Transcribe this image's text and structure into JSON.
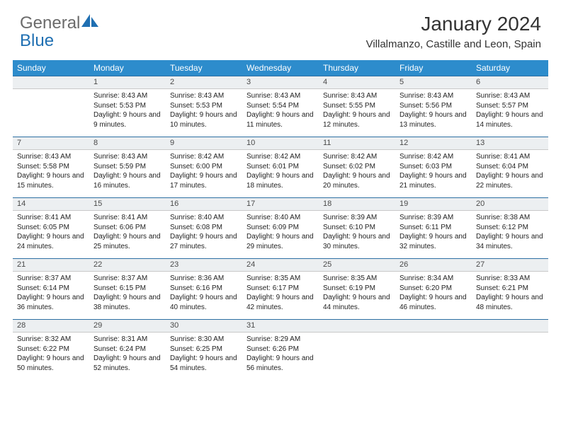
{
  "logo": {
    "line1": "General",
    "line2": "Blue"
  },
  "title": "January 2024",
  "location": "Villalmanzo, Castille and Leon, Spain",
  "colors": {
    "header_bg": "#2d8ccc",
    "header_text": "#ffffff",
    "daynum_bg": "#eceff1",
    "daynum_border_top": "#2d6fa3",
    "logo_gray": "#6b6b6b",
    "logo_blue": "#1f6fb2"
  },
  "weekdays": [
    "Sunday",
    "Monday",
    "Tuesday",
    "Wednesday",
    "Thursday",
    "Friday",
    "Saturday"
  ],
  "weeks": [
    [
      null,
      {
        "n": "1",
        "sr": "8:43 AM",
        "ss": "5:53 PM",
        "dl": "9 hours and 9 minutes."
      },
      {
        "n": "2",
        "sr": "8:43 AM",
        "ss": "5:53 PM",
        "dl": "9 hours and 10 minutes."
      },
      {
        "n": "3",
        "sr": "8:43 AM",
        "ss": "5:54 PM",
        "dl": "9 hours and 11 minutes."
      },
      {
        "n": "4",
        "sr": "8:43 AM",
        "ss": "5:55 PM",
        "dl": "9 hours and 12 minutes."
      },
      {
        "n": "5",
        "sr": "8:43 AM",
        "ss": "5:56 PM",
        "dl": "9 hours and 13 minutes."
      },
      {
        "n": "6",
        "sr": "8:43 AM",
        "ss": "5:57 PM",
        "dl": "9 hours and 14 minutes."
      }
    ],
    [
      {
        "n": "7",
        "sr": "8:43 AM",
        "ss": "5:58 PM",
        "dl": "9 hours and 15 minutes."
      },
      {
        "n": "8",
        "sr": "8:43 AM",
        "ss": "5:59 PM",
        "dl": "9 hours and 16 minutes."
      },
      {
        "n": "9",
        "sr": "8:42 AM",
        "ss": "6:00 PM",
        "dl": "9 hours and 17 minutes."
      },
      {
        "n": "10",
        "sr": "8:42 AM",
        "ss": "6:01 PM",
        "dl": "9 hours and 18 minutes."
      },
      {
        "n": "11",
        "sr": "8:42 AM",
        "ss": "6:02 PM",
        "dl": "9 hours and 20 minutes."
      },
      {
        "n": "12",
        "sr": "8:42 AM",
        "ss": "6:03 PM",
        "dl": "9 hours and 21 minutes."
      },
      {
        "n": "13",
        "sr": "8:41 AM",
        "ss": "6:04 PM",
        "dl": "9 hours and 22 minutes."
      }
    ],
    [
      {
        "n": "14",
        "sr": "8:41 AM",
        "ss": "6:05 PM",
        "dl": "9 hours and 24 minutes."
      },
      {
        "n": "15",
        "sr": "8:41 AM",
        "ss": "6:06 PM",
        "dl": "9 hours and 25 minutes."
      },
      {
        "n": "16",
        "sr": "8:40 AM",
        "ss": "6:08 PM",
        "dl": "9 hours and 27 minutes."
      },
      {
        "n": "17",
        "sr": "8:40 AM",
        "ss": "6:09 PM",
        "dl": "9 hours and 29 minutes."
      },
      {
        "n": "18",
        "sr": "8:39 AM",
        "ss": "6:10 PM",
        "dl": "9 hours and 30 minutes."
      },
      {
        "n": "19",
        "sr": "8:39 AM",
        "ss": "6:11 PM",
        "dl": "9 hours and 32 minutes."
      },
      {
        "n": "20",
        "sr": "8:38 AM",
        "ss": "6:12 PM",
        "dl": "9 hours and 34 minutes."
      }
    ],
    [
      {
        "n": "21",
        "sr": "8:37 AM",
        "ss": "6:14 PM",
        "dl": "9 hours and 36 minutes."
      },
      {
        "n": "22",
        "sr": "8:37 AM",
        "ss": "6:15 PM",
        "dl": "9 hours and 38 minutes."
      },
      {
        "n": "23",
        "sr": "8:36 AM",
        "ss": "6:16 PM",
        "dl": "9 hours and 40 minutes."
      },
      {
        "n": "24",
        "sr": "8:35 AM",
        "ss": "6:17 PM",
        "dl": "9 hours and 42 minutes."
      },
      {
        "n": "25",
        "sr": "8:35 AM",
        "ss": "6:19 PM",
        "dl": "9 hours and 44 minutes."
      },
      {
        "n": "26",
        "sr": "8:34 AM",
        "ss": "6:20 PM",
        "dl": "9 hours and 46 minutes."
      },
      {
        "n": "27",
        "sr": "8:33 AM",
        "ss": "6:21 PM",
        "dl": "9 hours and 48 minutes."
      }
    ],
    [
      {
        "n": "28",
        "sr": "8:32 AM",
        "ss": "6:22 PM",
        "dl": "9 hours and 50 minutes."
      },
      {
        "n": "29",
        "sr": "8:31 AM",
        "ss": "6:24 PM",
        "dl": "9 hours and 52 minutes."
      },
      {
        "n": "30",
        "sr": "8:30 AM",
        "ss": "6:25 PM",
        "dl": "9 hours and 54 minutes."
      },
      {
        "n": "31",
        "sr": "8:29 AM",
        "ss": "6:26 PM",
        "dl": "9 hours and 56 minutes."
      },
      null,
      null,
      null
    ]
  ],
  "labels": {
    "sunrise": "Sunrise:",
    "sunset": "Sunset:",
    "daylight": "Daylight:"
  }
}
